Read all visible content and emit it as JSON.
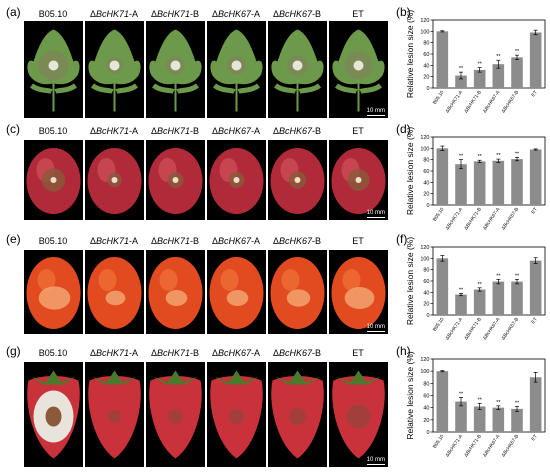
{
  "panel_letters": [
    "(a)",
    "(b)",
    "(c)",
    "(d)",
    "(e)",
    "(f)",
    "(g)",
    "(h)"
  ],
  "strains": [
    {
      "prefix": "",
      "name": "B05.10",
      "suffix": ""
    },
    {
      "prefix": "Δ",
      "name": "BcHK71",
      "suffix": "-A"
    },
    {
      "prefix": "Δ",
      "name": "BcHK71",
      "suffix": "-B"
    },
    {
      "prefix": "Δ",
      "name": "BcHK67",
      "suffix": "-A"
    },
    {
      "prefix": "Δ",
      "name": "BcHK67",
      "suffix": "-B"
    },
    {
      "prefix": "",
      "name": "ET",
      "suffix": ""
    }
  ],
  "scale_bar": "10 mm",
  "colors": {
    "bar": "#8c8c8c",
    "leaf_bg": "#000000",
    "leaf": "#6d9a4a",
    "apple": "#b12a3a",
    "tomato": "#e24a1f",
    "strawberry": "#c9313b"
  },
  "chart_data": [
    {
      "type": "bar",
      "panel": "(b)",
      "ylabel": "Relative lesion size (%)",
      "categories": [
        "B05.10",
        "ΔBcHK71-A",
        "ΔBcHK71-B",
        "ΔBcHK67-A",
        "ΔBcHK67-B",
        "ET"
      ],
      "values": [
        100,
        22,
        32,
        42,
        54,
        98
      ],
      "errors": [
        1,
        6,
        4,
        7,
        4,
        4
      ],
      "significance": [
        "",
        "**",
        "**",
        "**",
        "**",
        ""
      ],
      "ylim": [
        0,
        120
      ],
      "yticks": [
        "0",
        "20",
        "40",
        "60",
        "80",
        "100",
        "120"
      ]
    },
    {
      "type": "bar",
      "panel": "(d)",
      "ylabel": "Relative lesion size (%)",
      "categories": [
        "B05.10",
        "ΔBcHK71-A",
        "ΔBcHK71-B",
        "ΔBcHK67-A",
        "ΔBcHK67-B",
        "ET"
      ],
      "values": [
        100,
        72,
        77,
        78,
        81,
        98
      ],
      "errors": [
        4,
        8,
        2,
        3,
        3,
        1
      ],
      "significance": [
        "",
        "**",
        "**",
        "**",
        "**",
        ""
      ],
      "ylim": [
        0,
        120
      ],
      "yticks": [
        "0",
        "20",
        "40",
        "60",
        "80",
        "100",
        "120"
      ]
    },
    {
      "type": "bar",
      "panel": "(f)",
      "ylabel": "Relative lesion size (%)",
      "categories": [
        "B05.10",
        "ΔBcHK71-A",
        "ΔBcHK71-B",
        "ΔBcHK67-A",
        "ΔBcHK67-B",
        "ET"
      ],
      "values": [
        100,
        36,
        45,
        59,
        59,
        96
      ],
      "errors": [
        5,
        2,
        3,
        4,
        4,
        5
      ],
      "significance": [
        "",
        "**",
        "**",
        "**",
        "**",
        ""
      ],
      "ylim": [
        0,
        120
      ],
      "yticks": [
        "0",
        "20",
        "40",
        "60",
        "80",
        "100",
        "120"
      ]
    },
    {
      "type": "bar",
      "panel": "(h)",
      "ylabel": "Relative lesion size (%)",
      "categories": [
        "B05.10",
        "ΔBcHK71-A",
        "ΔBcHK71-B",
        "ΔBcHK67-A",
        "ΔBcHK67-B",
        "ET"
      ],
      "values": [
        100,
        50,
        42,
        40,
        38,
        90
      ],
      "errors": [
        1,
        7,
        5,
        3,
        4,
        8
      ],
      "significance": [
        "",
        "**",
        "**",
        "**",
        "**",
        ""
      ],
      "ylim": [
        0,
        120
      ],
      "yticks": [
        "0",
        "20",
        "40",
        "60",
        "80",
        "100",
        "120"
      ]
    }
  ]
}
